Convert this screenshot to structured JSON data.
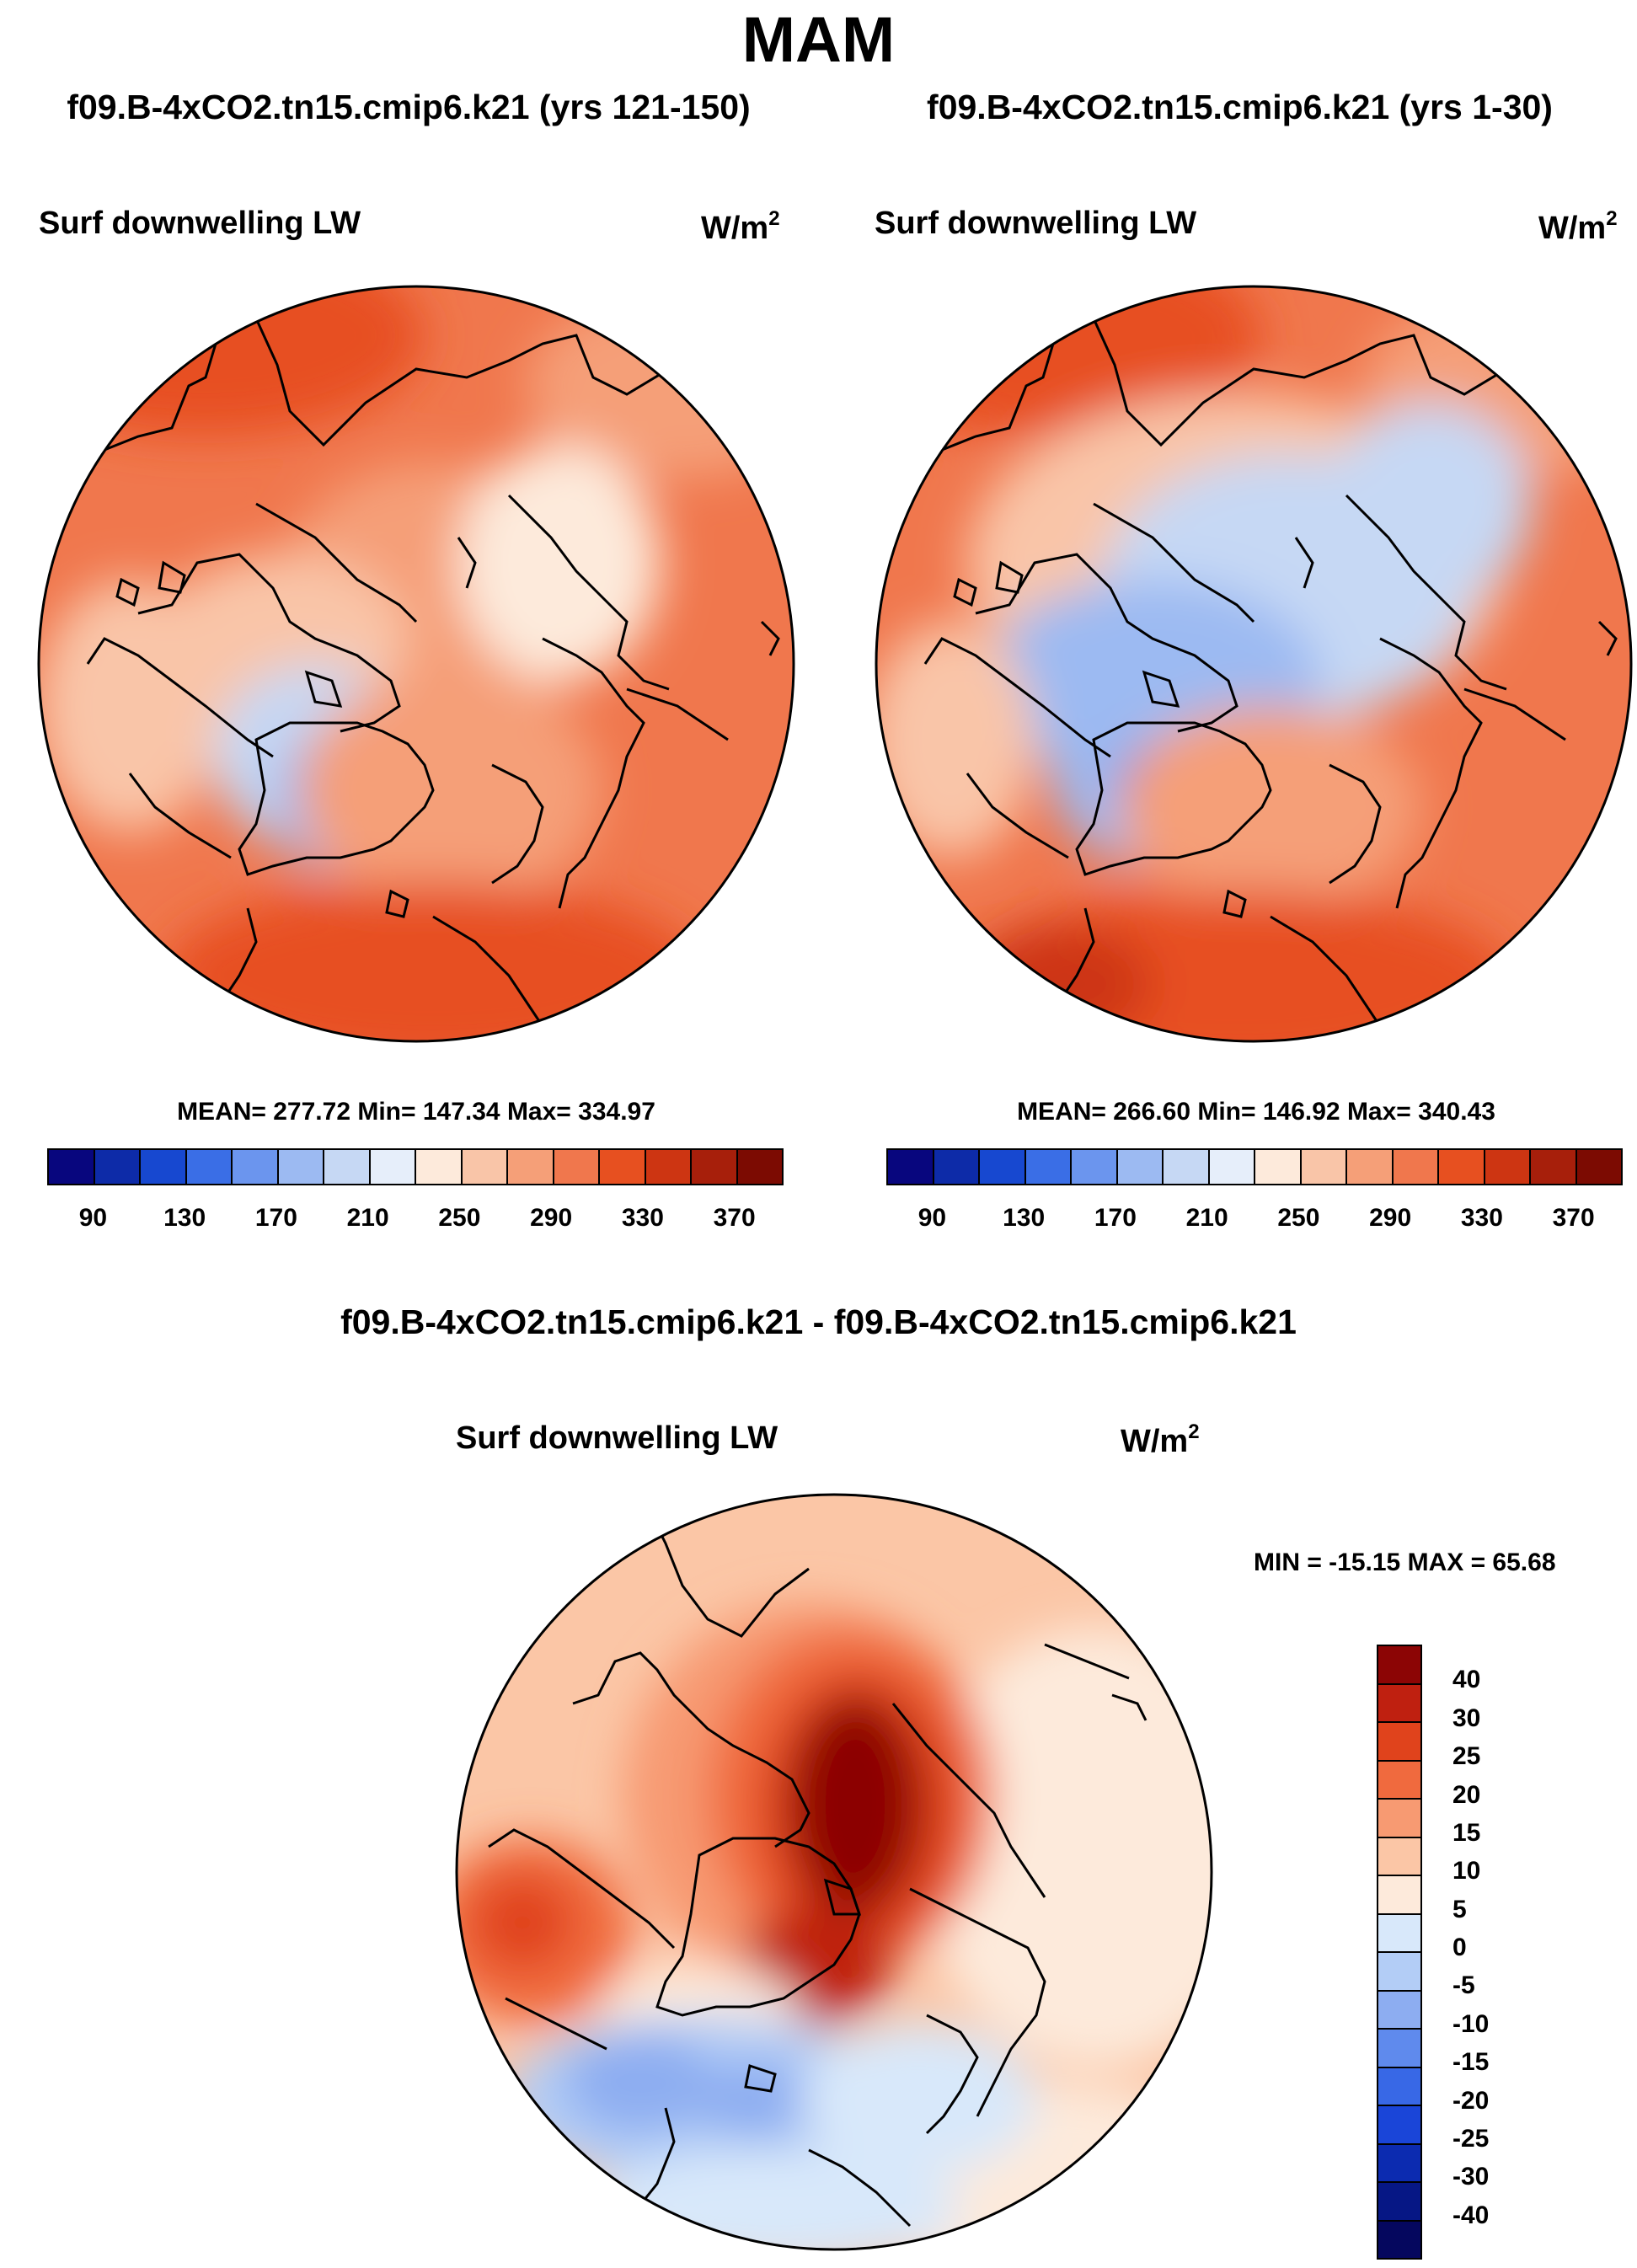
{
  "figure": {
    "season": "MAM",
    "difference_title": "f09.B-4xCO2.tn15.cmip6.k21 - f09.B-4xCO2.tn15.cmip6.k21"
  },
  "panels": [
    {
      "run_title": "f09.B-4xCO2.tn15.cmip6.k21 (yrs 121-150)",
      "variable": "Surf downwelling LW",
      "units_base": "W/m",
      "units_exp": "2",
      "stats": "MEAN= 277.72  Min= 147.34  Max= 334.97"
    },
    {
      "run_title": "f09.B-4xCO2.tn15.cmip6.k21 (yrs 1-30)",
      "variable": "Surf downwelling LW",
      "units_base": "W/m",
      "units_exp": "2",
      "stats": "MEAN= 266.60  Min= 146.92  Max= 340.43"
    },
    {
      "variable": "Surf downwelling LW",
      "units_base": "W/m",
      "units_exp": "2",
      "stats": "MIN = -15.15 MAX =  65.68"
    }
  ],
  "chart_data": [
    {
      "type": "heatmap",
      "projection": "north-polar-stereographic",
      "title": "f09.B-4xCO2.tn15.cmip6.k21 (yrs 121-150)",
      "variable": "Surf downwelling LW",
      "units": "W/m2",
      "mean": 277.72,
      "min": 147.34,
      "max": 334.97,
      "colorbar_ticks": [
        "90",
        "130",
        "170",
        "210",
        "250",
        "290",
        "330",
        "370"
      ],
      "colorbar_colors": [
        "#08067e",
        "#0d2ba8",
        "#1748d0",
        "#3a6ee6",
        "#6b95ee",
        "#9cbaf2",
        "#c6d8f4",
        "#e6eefa",
        "#fdeadb",
        "#f9c5a8",
        "#f59f78",
        "#f0774d",
        "#e75020",
        "#cd3512",
        "#a71f0b",
        "#7c0b02"
      ]
    },
    {
      "type": "heatmap",
      "projection": "north-polar-stereographic",
      "title": "f09.B-4xCO2.tn15.cmip6.k21 (yrs 1-30)",
      "variable": "Surf downwelling LW",
      "units": "W/m2",
      "mean": 266.6,
      "min": 146.92,
      "max": 340.43,
      "colorbar_ticks": [
        "90",
        "130",
        "170",
        "210",
        "250",
        "290",
        "330",
        "370"
      ],
      "colorbar_colors": [
        "#08067e",
        "#0d2ba8",
        "#1748d0",
        "#3a6ee6",
        "#6b95ee",
        "#9cbaf2",
        "#c6d8f4",
        "#e6eefa",
        "#fdeadb",
        "#f9c5a8",
        "#f59f78",
        "#f0774d",
        "#e75020",
        "#cd3512",
        "#a71f0b",
        "#7c0b02"
      ]
    },
    {
      "type": "heatmap",
      "projection": "north-polar-stereographic",
      "title": "f09.B-4xCO2.tn15.cmip6.k21 - f09.B-4xCO2.tn15.cmip6.k21",
      "variable": "Surf downwelling LW",
      "units": "W/m2",
      "min": -15.15,
      "max": 65.68,
      "colorbar_ticks": [
        "40",
        "30",
        "25",
        "20",
        "15",
        "10",
        "5",
        "0",
        "-5",
        "-10",
        "-15",
        "-20",
        "-25",
        "-30",
        "-40"
      ],
      "colorbar_colors": [
        "#8c0505",
        "#bf2010",
        "#e0431c",
        "#f06a3e",
        "#f79a72",
        "#fbc6a6",
        "#fdeadb",
        "#d8e8fa",
        "#b3cdf6",
        "#8dadf1",
        "#5f8aed",
        "#3868e6",
        "#1a45d8",
        "#0c2bb0",
        "#061785",
        "#05075e"
      ]
    }
  ],
  "colors": {
    "coastline": "#000000",
    "background": "#ffffff"
  }
}
